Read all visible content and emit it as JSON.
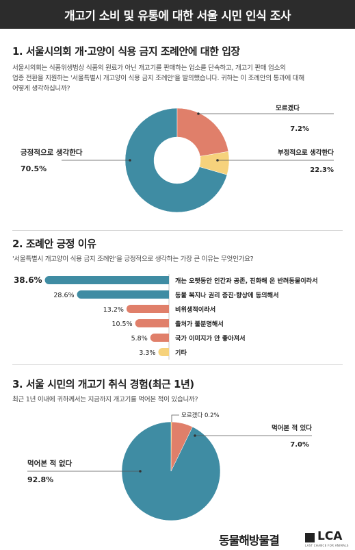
{
  "header": {
    "title": "개고기 소비 및 유통에 대한 서울 시민 인식 조사"
  },
  "section1": {
    "title": "1. 서울시의회 개·고양이 식용 금지 조례안에 대한 입장",
    "question_lines": [
      "서울시의회는 식품위생법상 식품의 원료가 아닌 개고기를 판매하는 업소를 단속하고, 개고기 판매 업소의",
      "업종 전환을 지원하는 '서울특별시 개고양이 식용 금지 조례안'을 발의했습니다. 귀하는 이 조례안의 통과에 대해",
      "어떻게 생각하십니까?"
    ]
  },
  "section2": {
    "title": "2. 조례안 긍정 이유",
    "question": "'서울특별시 개고양이 식용 금지 조례안'을 긍정적으로 생각하는 가장 큰 이유는 무엇인가요?"
  },
  "section3": {
    "title": "3. 서울 시민의 개고기 취식 경험(최근 1년)",
    "question": "최근 1년 이내에 귀하께서는 지금까지 개고기를 먹어본 적이 있습니까?"
  },
  "chart_data": [
    {
      "type": "pie",
      "variant": "donut",
      "labels": [
        "긍정적으로 생각한다",
        "부정적으로 생각한다",
        "모르겠다"
      ],
      "values": [
        70.5,
        22.3,
        7.2
      ],
      "value_labels": [
        "70.5%",
        "22.3%",
        "7.2%"
      ],
      "colors": [
        "#3f8ca3",
        "#e07f6a",
        "#f6d27c"
      ]
    },
    {
      "type": "bar",
      "orientation": "horizontal",
      "categories": [
        "개는 오랫동안 인간과 공존, 진화해 온 반려동물이라서",
        "동물 복지나 권리 증진·향상에 동의해서",
        "비위생적이라서",
        "출처가 불분명해서",
        "국가 이미지가 안 좋아져서",
        "기타"
      ],
      "values": [
        38.6,
        28.6,
        13.2,
        10.5,
        5.8,
        3.3
      ],
      "value_labels": [
        "38.6%",
        "28.6%",
        "13.2%",
        "10.5%",
        "5.8%",
        "3.3%"
      ],
      "colors": [
        "#3f8ca3",
        "#3f8ca3",
        "#e07f6a",
        "#e07f6a",
        "#e07f6a",
        "#f6d27c"
      ]
    },
    {
      "type": "pie",
      "labels": [
        "먹어본 적 없다",
        "먹어본 적 있다",
        "모르겠다"
      ],
      "values": [
        92.8,
        7.0,
        0.2
      ],
      "value_labels": [
        "92.8%",
        "7.0%",
        "0.2%"
      ],
      "colors": [
        "#3f8ca3",
        "#e07f6a",
        "#f6d27c"
      ]
    }
  ],
  "footer": {
    "org_name": "동물해방물결",
    "logo_text": "LCA",
    "logo_sub": "LAST CHANCE FOR ANIMALS"
  }
}
